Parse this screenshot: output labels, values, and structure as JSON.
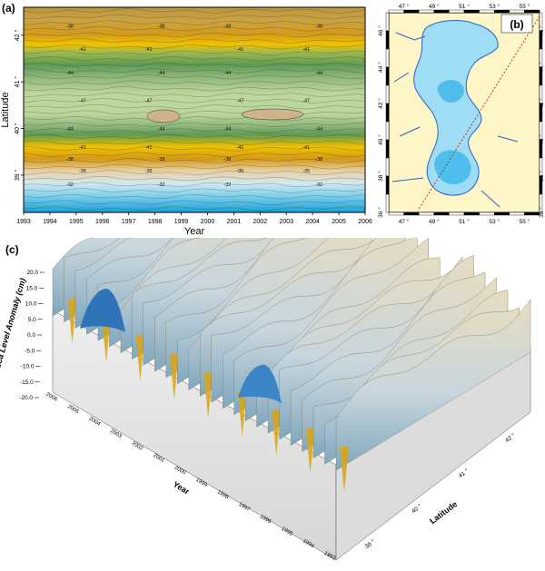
{
  "panel_labels": {
    "a": "(a)",
    "b": "(b)",
    "c": "(c)"
  },
  "chart_data": [
    {
      "type": "heatmap",
      "panel": "(a)",
      "xlabel": "Year",
      "ylabel": "Latitude",
      "x_ticks": [
        "1993",
        "1994",
        "1995",
        "1996",
        "1997",
        "1998",
        "1999",
        "2000",
        "2001",
        "2002",
        "2003",
        "2004",
        "2005",
        "2006"
      ],
      "xlim": [
        1993,
        2006
      ],
      "y_ticks": [
        "39 °",
        "40 °",
        "41 °",
        "42 °"
      ],
      "ylim": [
        38.2,
        42.6
      ],
      "contour_labels": [
        {
          "lat": 42.2,
          "value": "-38"
        },
        {
          "lat": 41.7,
          "value": "-41"
        },
        {
          "lat": 41.2,
          "value": "-44"
        },
        {
          "lat": 40.6,
          "value": "-47"
        },
        {
          "lat": 40.0,
          "value": "-44"
        },
        {
          "lat": 39.6,
          "value": "-41"
        },
        {
          "lat": 39.35,
          "value": "-38"
        },
        {
          "lat": 39.1,
          "value": "-35"
        },
        {
          "lat": 38.8,
          "value": "-32"
        }
      ],
      "grid": false
    },
    {
      "type": "map",
      "panel": "(b)",
      "lon_ticks": [
        "47 °",
        "49 °",
        "51 °",
        "53 °",
        "55 °"
      ],
      "lat_ticks": [
        "36 °",
        "38 °",
        "40 °",
        "42 °",
        "44 °",
        "46 °"
      ],
      "lon_range": [
        46,
        56
      ],
      "lat_range": [
        36,
        47
      ]
    },
    {
      "type": "surface3d",
      "panel": "(c)",
      "zlabel": "Sea Level Anomaly (cm)",
      "z_ticks": [
        "20.0",
        "15.0",
        "10.0",
        "5.0",
        "0.0",
        "-5.0",
        "-10.0",
        "-15.0",
        "-20.0"
      ],
      "zlim": [
        -20,
        20
      ],
      "xlabel": "Year",
      "year_ticks": [
        "2006",
        "2005",
        "2004",
        "2003",
        "2002",
        "2001",
        "2000",
        "1999",
        "1998",
        "1997",
        "1996",
        "1995",
        "1994",
        "1993"
      ],
      "ylabel": "Latitude",
      "lat_ticks": [
        "39 °",
        "40 °",
        "41 °",
        "42 °"
      ]
    }
  ]
}
